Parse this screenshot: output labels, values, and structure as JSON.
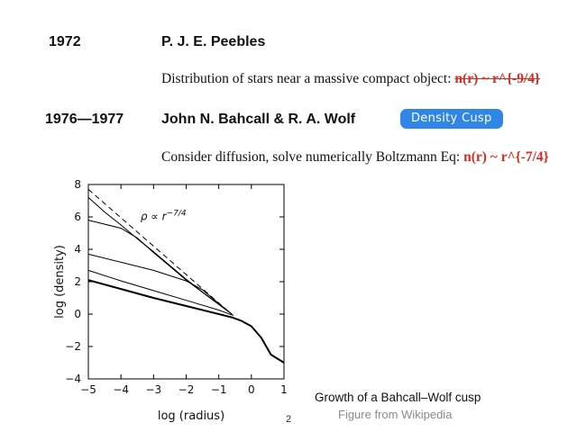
{
  "entries": [
    {
      "year": "1972",
      "author": "P. J. E. Peebles",
      "description": "Distribution of stars near a massive compact object:",
      "formula": "n(r) ~ r^{-9/4}"
    },
    {
      "year": "1976—1977",
      "author": "John N. Bahcall & R. A. Wolf",
      "badge": "Density Cusp",
      "description": "Consider diffusion, solve numerically Boltzmann Eq:",
      "formula": "n(r) ~ r^{-7/4}"
    }
  ],
  "caption": "Growth of a Bahcall–Wolf cusp",
  "credit": "Figure from Wikipedia",
  "page_number": "2",
  "colors": {
    "accent_red": "#d92b1f",
    "badge_blue": "#2f86e6",
    "credit_gray": "#8a8a8a"
  },
  "chart_data": {
    "type": "line",
    "title": "",
    "xlabel": "log (radius)",
    "ylabel": "log (density)",
    "xlim": [
      -5,
      1
    ],
    "ylim": [
      -4,
      8
    ],
    "xticks": [
      -5,
      -4,
      -3,
      -2,
      -1,
      0,
      1
    ],
    "yticks": [
      -4,
      -2,
      0,
      2,
      4,
      6,
      8
    ],
    "tick_labels_x": [
      "−5",
      "−4",
      "−3",
      "−2",
      "−1",
      "0",
      "1"
    ],
    "tick_labels_y": [
      "−4",
      "−2",
      "0",
      "2",
      "4",
      "6",
      "8"
    ],
    "annotation": {
      "prefix": "ρ ∝ r",
      "exponent": "−7/4",
      "x": -3.4,
      "y": 5.8
    },
    "reference_line": {
      "style": "dashed",
      "x": [
        -5,
        -0.55
      ],
      "y": [
        7.7,
        -0.1
      ]
    },
    "series": [
      {
        "style": "thick",
        "x": [
          -5,
          -4,
          -3,
          -2,
          -1.2,
          -0.6,
          -0.3,
          0,
          0.3,
          0.6,
          1
        ],
        "y": [
          2.1,
          1.55,
          1.0,
          0.5,
          0.1,
          -0.2,
          -0.42,
          -0.75,
          -1.45,
          -2.5,
          -3.0
        ]
      },
      {
        "style": "thin",
        "x": [
          -5,
          -4,
          -3,
          -2,
          -1,
          -0.6
        ],
        "y": [
          2.7,
          2.05,
          1.45,
          0.85,
          0.25,
          -0.05
        ]
      },
      {
        "style": "thin",
        "x": [
          -5,
          -4,
          -3,
          -2,
          -1.5,
          -1,
          -0.6
        ],
        "y": [
          3.7,
          3.2,
          2.7,
          2.05,
          1.5,
          0.65,
          0.0
        ]
      },
      {
        "style": "thin",
        "x": [
          -5,
          -4,
          -3.5,
          -3,
          -2.5,
          -2,
          -1.5,
          -1,
          -0.6
        ],
        "y": [
          5.8,
          5.3,
          4.7,
          3.8,
          2.95,
          2.1,
          1.35,
          0.6,
          0.0
        ]
      },
      {
        "style": "thin",
        "x": [
          -5,
          -4.5,
          -4,
          -3.5,
          -3,
          -2.5,
          -2,
          -1.5,
          -1,
          -0.6
        ],
        "y": [
          7.2,
          6.3,
          5.5,
          4.65,
          3.85,
          3.0,
          2.15,
          1.35,
          0.6,
          0.0
        ]
      }
    ]
  }
}
